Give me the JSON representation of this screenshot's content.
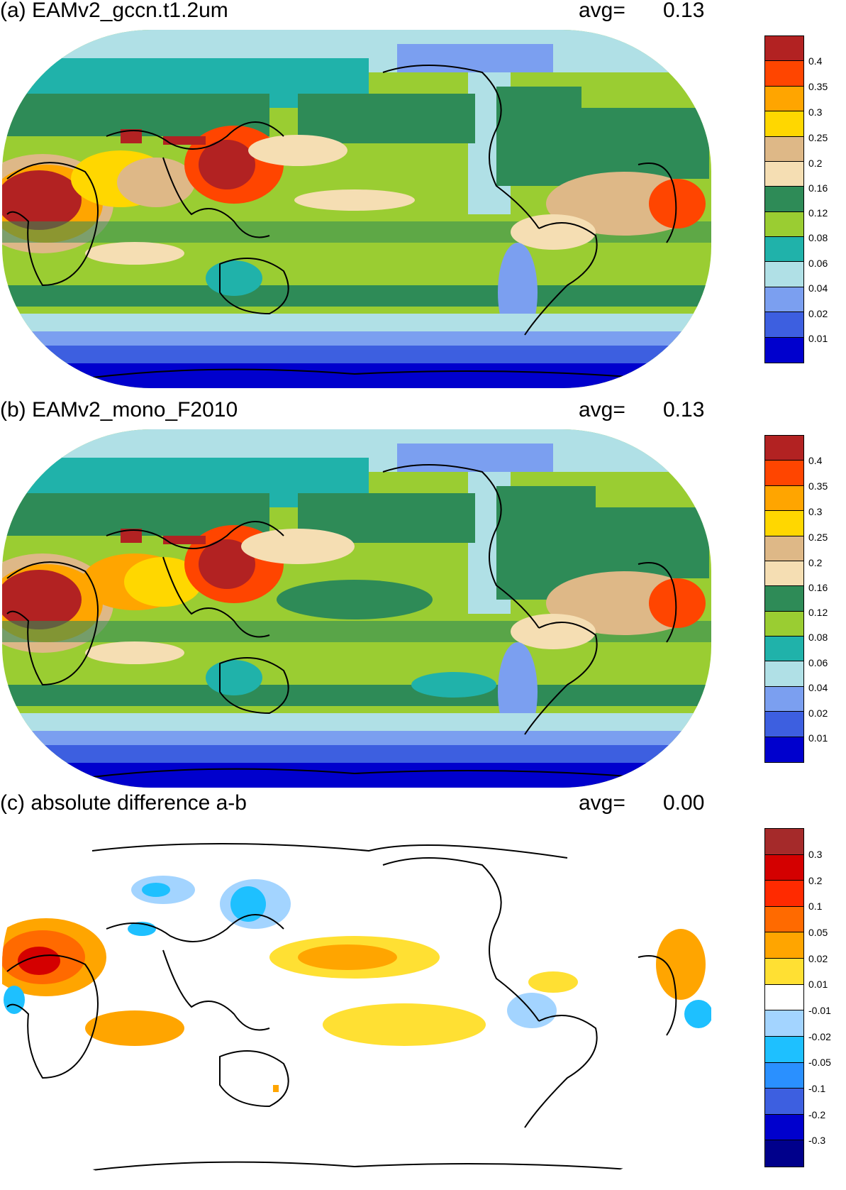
{
  "panels": [
    {
      "title": "(a) EAMv2_gccn.t1.2um",
      "avg_label": "avg=",
      "avg_value": "0.13",
      "colorbar": {
        "labels": [
          "0.4",
          "0.35",
          "0.3",
          "0.25",
          "0.2",
          "0.16",
          "0.12",
          "0.08",
          "0.06",
          "0.04",
          "0.02",
          "0.01"
        ],
        "colors": [
          "#b22222",
          "#ff4500",
          "#ffa500",
          "#ffd700",
          "#deb887",
          "#f5deb3",
          "#2e8b57",
          "#9acd32",
          "#20b2aa",
          "#b0e0e6",
          "#7b9ff0",
          "#3d5fe0",
          "#0000cd"
        ]
      }
    },
    {
      "title": "(b) EAMv2_mono_F2010",
      "avg_label": "avg=",
      "avg_value": "0.13",
      "colorbar": {
        "labels": [
          "0.4",
          "0.35",
          "0.3",
          "0.25",
          "0.2",
          "0.16",
          "0.12",
          "0.08",
          "0.06",
          "0.04",
          "0.02",
          "0.01"
        ],
        "colors": [
          "#b22222",
          "#ff4500",
          "#ffa500",
          "#ffd700",
          "#deb887",
          "#f5deb3",
          "#2e8b57",
          "#9acd32",
          "#20b2aa",
          "#b0e0e6",
          "#7b9ff0",
          "#3d5fe0",
          "#0000cd"
        ]
      }
    },
    {
      "title": "(c) absolute difference a-b",
      "avg_label": "avg=",
      "avg_value": "0.00",
      "colorbar": {
        "labels": [
          "0.3",
          "0.2",
          "0.1",
          "0.05",
          "0.02",
          "0.01",
          "-0.01",
          "-0.02",
          "-0.05",
          "-0.1",
          "-0.2",
          "-0.3"
        ],
        "colors": [
          "#a52a2a",
          "#d40000",
          "#ff2a00",
          "#ff6a00",
          "#ffa500",
          "#ffe033",
          "#ffffff",
          "#a3d4ff",
          "#1ec0ff",
          "#2a90ff",
          "#3d5fe0",
          "#0000cd",
          "#00008b"
        ]
      }
    }
  ]
}
